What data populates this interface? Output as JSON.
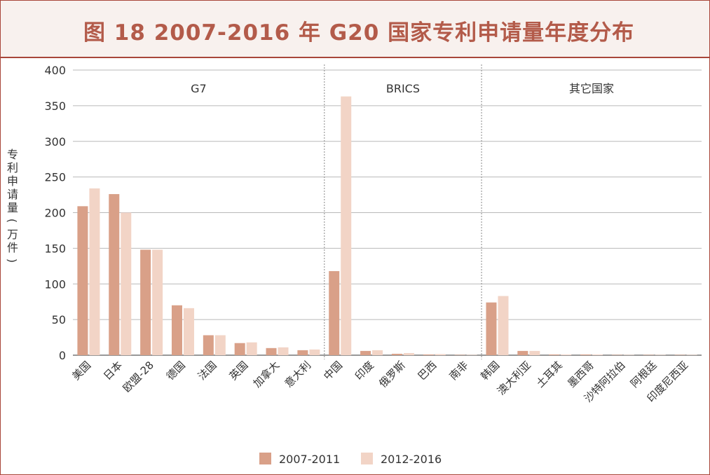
{
  "title": "图 18 2007-2016 年 G20 国家专利申请量年度分布",
  "chart_data": {
    "type": "bar",
    "ylabel_chars": [
      "专",
      "利",
      "申",
      "请",
      "量",
      "(",
      "万",
      "件",
      ")"
    ],
    "ylim": [
      0,
      400
    ],
    "yticks": [
      0,
      50,
      100,
      150,
      200,
      250,
      300,
      350,
      400
    ],
    "grid": true,
    "legend_position": "bottom-center",
    "groups": [
      {
        "label": "G7",
        "categories": [
          "美国",
          "日本",
          "欧盟-28",
          "德国",
          "法国",
          "英国",
          "加拿大",
          "意大利"
        ]
      },
      {
        "label": "BRICS",
        "categories": [
          "中国",
          "印度",
          "俄罗斯",
          "巴西",
          "南非"
        ]
      },
      {
        "label": "其它国家",
        "categories": [
          "韩国",
          "澳大利亚",
          "土耳其",
          "墨西哥",
          "沙特阿拉伯",
          "阿根廷",
          "印度尼西亚"
        ]
      }
    ],
    "categories": [
      "美国",
      "日本",
      "欧盟-28",
      "德国",
      "法国",
      "英国",
      "加拿大",
      "意大利",
      "中国",
      "印度",
      "俄罗斯",
      "巴西",
      "南非",
      "韩国",
      "澳大利亚",
      "土耳其",
      "墨西哥",
      "沙特阿拉伯",
      "阿根廷",
      "印度尼西亚"
    ],
    "series": [
      {
        "name": "2007-2011",
        "color": "#d9a088",
        "values": [
          209,
          226,
          148,
          70,
          28,
          17,
          10,
          7,
          118,
          6,
          2,
          1,
          0.5,
          74,
          6,
          1,
          1,
          0.5,
          0.5,
          0.5
        ]
      },
      {
        "name": "2012-2016",
        "color": "#f2d4c6",
        "values": [
          234,
          200,
          148,
          66,
          28,
          18,
          11,
          8,
          363,
          7,
          3,
          1.5,
          0.5,
          83,
          6,
          1,
          1,
          0.5,
          0.5,
          0.5
        ]
      }
    ]
  }
}
